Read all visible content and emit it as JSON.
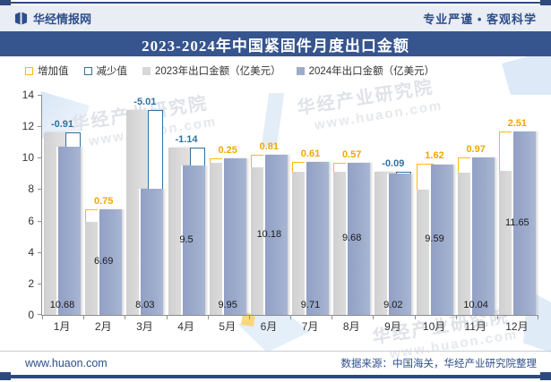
{
  "header": {
    "brand": "华经情报网",
    "tagline": "专业严谨 • 客观科学"
  },
  "title": "2023-2024年中国紧固件月度出口金额",
  "legend": {
    "items": [
      {
        "label": "增加值",
        "swatch": "outline",
        "color": "#fdb913"
      },
      {
        "label": "减少值",
        "swatch": "outline",
        "color": "#31719f"
      },
      {
        "label": "2023年出口金额（亿美元）",
        "swatch": "solid",
        "color": "#d7d7d7"
      },
      {
        "label": "2024年出口金额（亿美元）",
        "swatch": "solid",
        "color": "#9dabcb"
      }
    ]
  },
  "chart_data": {
    "type": "bar",
    "title": "2023-2024年中国紧固件月度出口金额",
    "categories": [
      "1月",
      "2月",
      "3月",
      "4月",
      "5月",
      "6月",
      "7月",
      "8月",
      "9月",
      "10月",
      "11月",
      "12月"
    ],
    "series": [
      {
        "name": "2023年出口金额（亿美元）",
        "color": "#d7d7d7",
        "values": [
          11.59,
          5.94,
          13.04,
          10.64,
          9.7,
          9.37,
          9.1,
          9.11,
          9.11,
          7.97,
          9.07,
          9.14
        ]
      },
      {
        "name": "2024年出口金额（亿美元）",
        "color": "#9dabcb",
        "values": [
          10.68,
          6.69,
          8.03,
          9.5,
          9.95,
          10.18,
          9.71,
          9.68,
          9.02,
          9.59,
          10.04,
          11.65
        ]
      }
    ],
    "change_series": {
      "increase_label": "增加值",
      "decrease_label": "减少值",
      "increase_color": "#fdb913",
      "decrease_color": "#31719f",
      "values": [
        "-0.91",
        "0.75",
        "-5.01",
        "-1.14",
        "0.25",
        "0.81",
        "0.61",
        "0.57",
        "-0.09",
        "1.62",
        "0.97",
        "2.51"
      ]
    },
    "value_labels": {
      "series": "2024年出口金额（亿美元）",
      "values": [
        "10.68",
        "6.69",
        "8.03",
        "9.5",
        "9.95",
        "10.18",
        "9.71",
        "9.68",
        "9.02",
        "9.59",
        "10.04",
        "11.65"
      ]
    },
    "xlabel": "",
    "ylabel": "",
    "ylim": [
      0,
      14
    ],
    "yticks": [
      0,
      2,
      4,
      6,
      8,
      10,
      12,
      14
    ],
    "grid": false,
    "legend_position": "top"
  },
  "watermark": {
    "line1": "华经产业研究院",
    "line2": "www.huaon.com"
  },
  "footer": {
    "site": "www.huaon.com",
    "source": "数据来源：中国海关，华经产业研究院整理"
  }
}
